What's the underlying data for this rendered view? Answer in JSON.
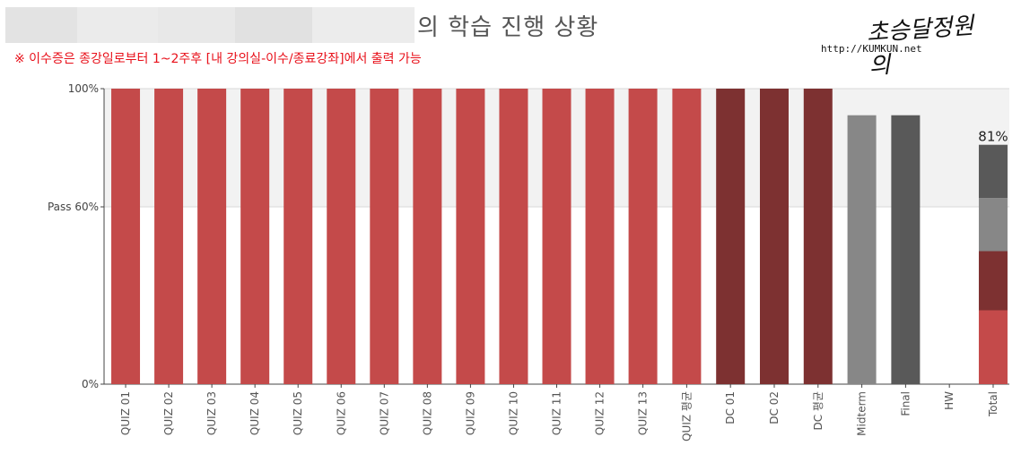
{
  "header": {
    "title_suffix": "의 학습 진행 상황",
    "notice": "※ 이수증은 종강일로부터 1~2주후 [내 강의실-이수/종료강좌]에서 출력 가능",
    "logo_script": "초승달정원의",
    "logo_url": "http://KUMKUN.net"
  },
  "colors": {
    "quiz": "#c44a4a",
    "dc": "#7d3131",
    "midterm": "#878787",
    "final": "#595959",
    "pass_band": "#f2f2f2",
    "name_blur": "#e6e6e6"
  },
  "chart_data": {
    "type": "bar",
    "title": "",
    "xlabel": "",
    "ylabel": "",
    "ylim": [
      0,
      100
    ],
    "y_ticks": [
      {
        "value": 0,
        "label": "0%"
      },
      {
        "value": 60,
        "label": "Pass 60%"
      },
      {
        "value": 100,
        "label": "100%"
      }
    ],
    "pass_threshold": 60,
    "categories": [
      "QUIZ 01",
      "QUIZ 02",
      "QUIZ 03",
      "QUIZ 04",
      "QUIZ 05",
      "QUIZ 06",
      "QUIZ 07",
      "QUIZ 08",
      "QUIZ 09",
      "QUIZ 10",
      "QUIZ 11",
      "QUIZ 12",
      "QUIZ 13",
      "QUIZ 평균",
      "DC 01",
      "DC 02",
      "DC 평균",
      "Midterm",
      "Final",
      "HW",
      "Total"
    ],
    "values": [
      100,
      100,
      100,
      100,
      100,
      100,
      100,
      100,
      100,
      100,
      100,
      100,
      100,
      100,
      100,
      100,
      100,
      91,
      91,
      0,
      81
    ],
    "bar_groups": [
      "quiz",
      "quiz",
      "quiz",
      "quiz",
      "quiz",
      "quiz",
      "quiz",
      "quiz",
      "quiz",
      "quiz",
      "quiz",
      "quiz",
      "quiz",
      "quiz",
      "dc",
      "dc",
      "dc",
      "midterm",
      "final",
      "hw",
      "total"
    ],
    "total_label": "81%",
    "total_segments": [
      {
        "component": "quiz",
        "value": 25
      },
      {
        "component": "dc",
        "value": 20
      },
      {
        "component": "midterm",
        "value": 18
      },
      {
        "component": "final",
        "value": 18
      }
    ]
  }
}
